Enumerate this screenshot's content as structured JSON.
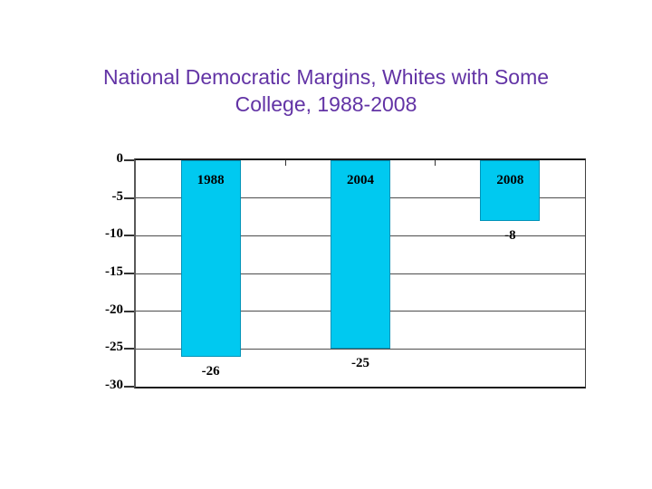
{
  "slide": {
    "background": "#FFFFFF",
    "title": {
      "line1": "National Democratic Margins, Whites with Some",
      "line2": "College, 1988-2008",
      "color": "#6233A5"
    }
  },
  "chart_data": {
    "type": "bar",
    "title": "National Democratic Margins, Whites with Some College, 1988-2008",
    "categories": [
      "1988",
      "2004",
      "2008"
    ],
    "values": [
      -26,
      -25,
      -8
    ],
    "value_labels": [
      "-26",
      "-25",
      "-8"
    ],
    "xlabel": "",
    "ylabel": "",
    "ylim": [
      -30,
      0
    ],
    "yticks": [
      0,
      -5,
      -10,
      -15,
      -20,
      -25,
      -30
    ],
    "ytick_labels": [
      "0",
      "-5",
      "-10",
      "-15",
      "-20",
      "-25",
      "-30"
    ],
    "grid": true,
    "legend": false,
    "bars_hang_from_zero_at_top": true,
    "bar_color": "#00C9F0",
    "bar_border_color": "#0093B8",
    "grid_color": "#4D4D4D",
    "axis_color": "#1A1A1A",
    "tick_color": "#333333",
    "label_color": "#000000"
  }
}
